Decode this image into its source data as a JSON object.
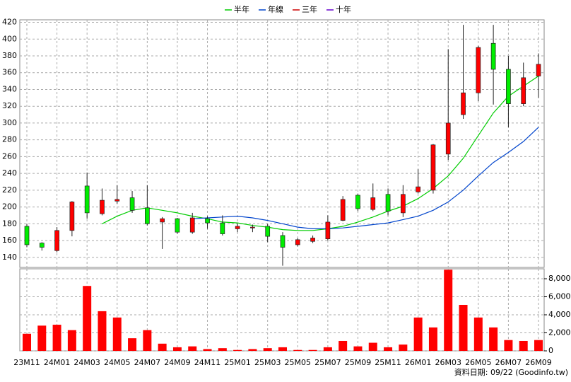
{
  "chart_data": {
    "type": "candlestick",
    "categories": [
      "23M11",
      null,
      "24M01",
      null,
      "24M03",
      null,
      "24M05",
      null,
      "24M07",
      null,
      "24M09",
      null,
      "24M11",
      null,
      "25M01",
      null,
      "25M03",
      null,
      "25M05",
      null,
      "25M07",
      null,
      "25M09",
      null,
      "25M11",
      null,
      "26M01",
      null,
      "26M03",
      null,
      "26M05",
      null,
      "26M07",
      null,
      "26M09"
    ],
    "open": [
      177,
      157,
      148,
      172,
      225,
      192,
      207,
      211,
      199,
      182,
      186,
      170,
      186,
      181,
      174,
      175,
      177,
      166,
      155,
      159,
      162,
      184,
      214,
      197,
      215,
      193,
      218,
      220,
      263,
      310,
      336,
      395,
      364,
      323,
      356
    ],
    "high": [
      180,
      158,
      176,
      207,
      241,
      222,
      226,
      219,
      226,
      188,
      187,
      193,
      189,
      190,
      180,
      179,
      180,
      170,
      163,
      166,
      190,
      213,
      216,
      228,
      222,
      226,
      245,
      275,
      388,
      417,
      392,
      417,
      380,
      372,
      383
    ],
    "low": [
      152,
      148,
      146,
      165,
      186,
      190,
      204,
      193,
      178,
      150,
      168,
      168,
      174,
      166,
      170,
      170,
      158,
      130,
      153,
      157,
      160,
      183,
      195,
      195,
      190,
      188,
      216,
      216,
      256,
      305,
      326,
      322,
      295,
      320,
      330
    ],
    "close": [
      155,
      152,
      172,
      206,
      193,
      208,
      209,
      196,
      180,
      186,
      170,
      187,
      181,
      168,
      177,
      176,
      165,
      152,
      161,
      163,
      182,
      209,
      198,
      211,
      195,
      215,
      224,
      274,
      300,
      336,
      390,
      364,
      323,
      354,
      370
    ],
    "up_color": "#ff0000",
    "down_color": "#00ee00",
    "series": [
      {
        "name": "半年",
        "color": "#00cc00",
        "values": [
          null,
          null,
          null,
          null,
          null,
          180,
          189,
          196,
          199,
          196,
          193,
          189,
          186,
          182,
          181,
          178,
          176,
          173,
          172,
          172,
          174,
          177,
          182,
          188,
          195,
          201,
          210,
          222,
          237,
          258,
          285,
          312,
          332,
          344,
          356
        ]
      },
      {
        "name": "年線",
        "color": "#0044cc",
        "values": [
          null,
          null,
          null,
          null,
          null,
          null,
          null,
          null,
          null,
          null,
          null,
          186,
          187,
          188,
          189,
          187,
          184,
          180,
          176,
          174,
          174,
          175,
          177,
          179,
          181,
          185,
          189,
          196,
          206,
          220,
          237,
          253,
          265,
          278,
          295
        ]
      },
      {
        "name": "三年",
        "color": "#cc0000",
        "values": [
          null,
          null,
          null,
          null,
          null,
          null,
          null,
          null,
          null,
          null,
          null,
          null,
          null,
          null,
          null,
          null,
          null,
          null,
          null,
          null,
          null,
          null,
          null,
          null,
          null,
          null,
          null,
          null,
          null,
          null,
          null,
          null,
          null,
          null,
          null
        ]
      },
      {
        "name": "十年",
        "color": "#6600cc",
        "values": [
          null,
          null,
          null,
          null,
          null,
          null,
          null,
          null,
          null,
          null,
          null,
          null,
          null,
          null,
          null,
          null,
          null,
          null,
          null,
          null,
          null,
          null,
          null,
          null,
          null,
          null,
          null,
          null,
          null,
          null,
          null,
          null,
          null,
          null,
          null
        ]
      }
    ],
    "ylim": [
      128,
      423
    ],
    "yticks": [
      140,
      160,
      180,
      200,
      220,
      240,
      260,
      280,
      300,
      320,
      340,
      360,
      380,
      400,
      420
    ],
    "grid": true,
    "volume": {
      "color": "#ff0000",
      "values": [
        1900,
        2800,
        2900,
        2300,
        7200,
        4400,
        3700,
        1400,
        2300,
        800,
        400,
        500,
        200,
        300,
        100,
        200,
        300,
        400,
        100,
        100,
        400,
        1100,
        500,
        900,
        400,
        700,
        3700,
        2600,
        9000,
        5100,
        3700,
        2600,
        1200,
        1100,
        1200
      ],
      "ylim": [
        0,
        9100
      ],
      "yticks": [
        0,
        {
          "value": 2000,
          "label": "2,000"
        },
        {
          "value": 4000,
          "label": "4,000"
        },
        {
          "value": 6000,
          "label": "6,000"
        },
        {
          "value": 8000,
          "label": "8,000"
        }
      ]
    },
    "footer": "資料日期: 09/22  (Goodinfo.tw)"
  }
}
